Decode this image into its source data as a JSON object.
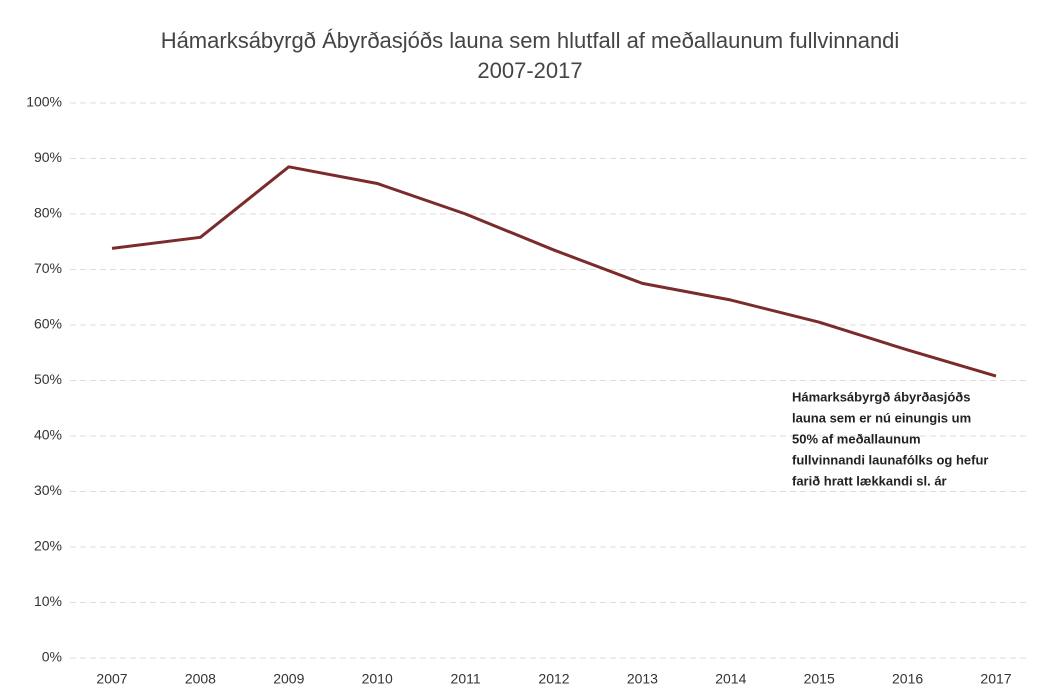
{
  "chart_data": {
    "type": "line",
    "title": [
      "Hámarksábyrgð Ábyrðasjóðs launa sem hlutfall af meðallaunum fullvinnandi",
      "2007-2017"
    ],
    "categories": [
      "2007",
      "2008",
      "2009",
      "2010",
      "2011",
      "2012",
      "2013",
      "2014",
      "2015",
      "2016",
      "2017"
    ],
    "values": [
      73.8,
      75.8,
      88.5,
      85.5,
      80,
      73.5,
      67.5,
      64.5,
      60.5,
      55.5,
      50.8
    ],
    "color": "#7b2b2b",
    "ylim": [
      0,
      100
    ],
    "yticks": [
      {
        "value": 0,
        "label": "0%"
      },
      {
        "value": 10,
        "label": "10%"
      },
      {
        "value": 20,
        "label": "20%"
      },
      {
        "value": 30,
        "label": "30%"
      },
      {
        "value": 40,
        "label": "40%"
      },
      {
        "value": 50,
        "label": "50%"
      },
      {
        "value": 60,
        "label": "60%"
      },
      {
        "value": 70,
        "label": "70%"
      },
      {
        "value": 80,
        "label": "80%"
      },
      {
        "value": 90,
        "label": "90%"
      },
      {
        "value": 100,
        "label": "100%"
      }
    ],
    "grid": true,
    "annotation": [
      "Hámarksábyrgð ábyrðasjóðs",
      "launa sem er nú einungis um",
      "50% af meðallaunum",
      "fullvinnandi launafólks og hefur",
      "farið hratt lækkandi sl. ár"
    ]
  }
}
